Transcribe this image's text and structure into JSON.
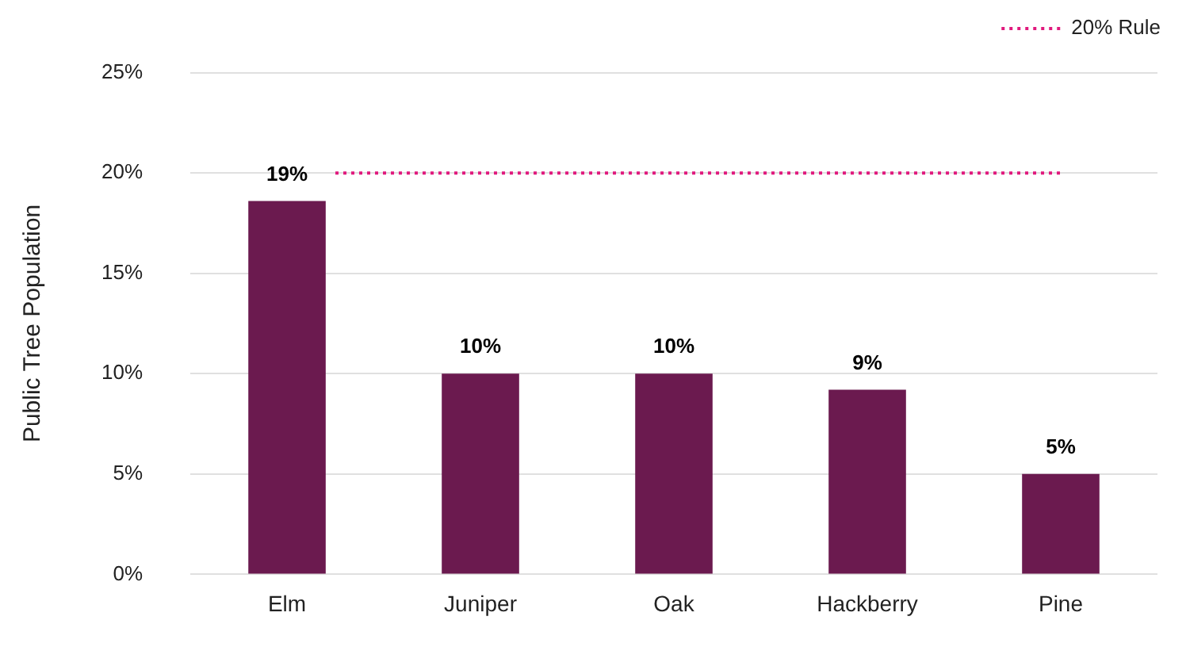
{
  "chart_data": {
    "type": "bar",
    "ylabel": "Public Tree Population",
    "categories": [
      "Elm",
      "Juniper",
      "Oak",
      "Hackberry",
      "Pine"
    ],
    "values": [
      18.6,
      10,
      10,
      9.2,
      5
    ],
    "value_labels": [
      "19%",
      "10%",
      "10%",
      "9%",
      "5%"
    ],
    "color": "#6b1a4f",
    "ylim": [
      0,
      25
    ],
    "yticks": [
      {
        "value": 0,
        "label": "0%"
      },
      {
        "value": 5,
        "label": "5%"
      },
      {
        "value": 10,
        "label": "10%"
      },
      {
        "value": 15,
        "label": "15%"
      },
      {
        "value": 20,
        "label": "20%"
      },
      {
        "value": 25,
        "label": "25%"
      }
    ],
    "ref_lines": [
      {
        "axis": "y",
        "value": 20,
        "label": "20% Rule",
        "color": "#e0197d",
        "line_style": "dotted"
      }
    ],
    "grid": "y",
    "legend": "top right"
  }
}
